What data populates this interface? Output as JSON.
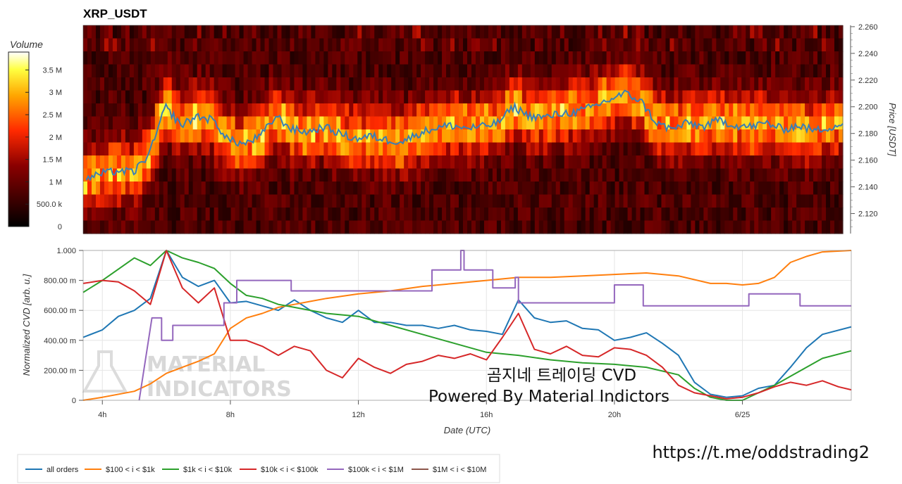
{
  "chart_data": [
    {
      "type": "heatmap",
      "title": "XRP_USDT",
      "y_axis": {
        "label": "Price [USDT]",
        "ticks": [
          "2.260",
          "2.240",
          "2.220",
          "2.200",
          "2.180",
          "2.160",
          "2.140",
          "2.120"
        ],
        "ylim": [
          2.105,
          2.261
        ]
      },
      "colorbar": {
        "label": "Volume",
        "ticks": [
          "3.5 M",
          "3 M",
          "2.5 M",
          "2 M",
          "1.5 M",
          "1 M",
          "500.0 k",
          "0"
        ],
        "max_value": 3.9
      },
      "price_series": {
        "name": "price",
        "color": "#3a7fb5",
        "x": [
          3.5,
          4,
          4.5,
          5,
          5.5,
          6,
          6.5,
          7,
          7.5,
          8,
          8.5,
          9,
          9.5,
          10,
          10.5,
          11,
          11.5,
          12,
          12.5,
          13,
          13.5,
          14,
          14.5,
          15,
          15.5,
          16,
          16.5,
          17,
          17.5,
          18,
          18.5,
          19,
          19.5,
          20,
          20.5,
          21,
          21.5,
          22,
          22.5,
          23,
          23.5,
          24,
          24.5,
          25,
          25.5,
          26,
          26.5,
          27.4
        ],
        "y": [
          2.146,
          2.15,
          2.152,
          2.151,
          2.165,
          2.2,
          2.186,
          2.193,
          2.19,
          2.175,
          2.172,
          2.178,
          2.193,
          2.183,
          2.181,
          2.185,
          2.18,
          2.176,
          2.178,
          2.175,
          2.174,
          2.18,
          2.184,
          2.186,
          2.184,
          2.185,
          2.188,
          2.2,
          2.193,
          2.192,
          2.195,
          2.196,
          2.2,
          2.205,
          2.21,
          2.205,
          2.188,
          2.183,
          2.188,
          2.185,
          2.19,
          2.186,
          2.185,
          2.188,
          2.183,
          2.186,
          2.182,
          2.187
        ]
      }
    },
    {
      "type": "line",
      "xlabel": "Date (UTC)",
      "ylabel": "Normalized CVD [arb. u.]",
      "ylim": [
        0,
        1
      ],
      "yticks": [
        "0",
        "200.00 m",
        "400.00 m",
        "600.00 m",
        "800.00 m",
        "1.000"
      ],
      "xticks": [
        {
          "label": "4h",
          "x": 4
        },
        {
          "label": "8h",
          "x": 8
        },
        {
          "label": "12h",
          "x": 12
        },
        {
          "label": "16h",
          "x": 16
        },
        {
          "label": "20h",
          "x": 20
        },
        {
          "label": "6/25",
          "x": 24
        }
      ],
      "xlim": [
        3.4,
        27.4
      ],
      "series": [
        {
          "name": "all orders",
          "color": "#1f77b4",
          "x": [
            3.4,
            4,
            4.5,
            5,
            5.5,
            6,
            6.5,
            7,
            7.5,
            8,
            8.5,
            9,
            9.5,
            10,
            10.5,
            11,
            11.5,
            12,
            12.5,
            13,
            13.5,
            14,
            14.5,
            15,
            15.5,
            16,
            16.5,
            17,
            17.5,
            18,
            18.5,
            19,
            19.5,
            20,
            20.5,
            21,
            21.5,
            22,
            22.5,
            23,
            23.5,
            24,
            24.5,
            25,
            25.5,
            26,
            26.5,
            27.4
          ],
          "y": [
            0.42,
            0.47,
            0.56,
            0.6,
            0.68,
            1.0,
            0.82,
            0.76,
            0.8,
            0.65,
            0.66,
            0.63,
            0.6,
            0.67,
            0.6,
            0.55,
            0.52,
            0.6,
            0.52,
            0.52,
            0.5,
            0.5,
            0.48,
            0.5,
            0.47,
            0.46,
            0.44,
            0.67,
            0.55,
            0.52,
            0.53,
            0.48,
            0.47,
            0.4,
            0.42,
            0.45,
            0.38,
            0.3,
            0.12,
            0.04,
            0.02,
            0.03,
            0.08,
            0.1,
            0.22,
            0.35,
            0.44,
            0.49
          ]
        },
        {
          "name": "$100 < i < $1k",
          "color": "#ff7f0e",
          "x": [
            3.4,
            4,
            5,
            5.5,
            6,
            6.5,
            7,
            7.5,
            8,
            8.5,
            9,
            9.5,
            10,
            10.5,
            11,
            12,
            13,
            14,
            15,
            16,
            17,
            18,
            19,
            20,
            21,
            22,
            23,
            23.5,
            24,
            24.5,
            25,
            25.5,
            26,
            26.5,
            27.4
          ],
          "y": [
            0.0,
            0.02,
            0.06,
            0.11,
            0.18,
            0.22,
            0.26,
            0.31,
            0.48,
            0.55,
            0.58,
            0.62,
            0.64,
            0.66,
            0.68,
            0.71,
            0.73,
            0.76,
            0.78,
            0.8,
            0.82,
            0.82,
            0.83,
            0.84,
            0.85,
            0.83,
            0.78,
            0.78,
            0.77,
            0.78,
            0.82,
            0.92,
            0.96,
            0.99,
            1.0
          ]
        },
        {
          "name": "$1k < i < $10k",
          "color": "#2ca02c",
          "x": [
            3.4,
            4,
            5,
            5.5,
            6,
            6.5,
            7,
            7.5,
            8,
            8.5,
            9,
            9.5,
            10,
            11,
            12,
            13,
            14,
            15,
            16,
            17,
            18,
            19,
            20,
            21,
            22,
            22.5,
            23,
            23.5,
            24,
            24.5,
            25,
            25.5,
            26,
            26.5,
            27.4
          ],
          "y": [
            0.72,
            0.8,
            0.95,
            0.9,
            1.0,
            0.95,
            0.92,
            0.88,
            0.78,
            0.7,
            0.68,
            0.64,
            0.62,
            0.58,
            0.56,
            0.5,
            0.44,
            0.38,
            0.32,
            0.3,
            0.27,
            0.25,
            0.24,
            0.22,
            0.17,
            0.08,
            0.02,
            0.0,
            0.0,
            0.05,
            0.1,
            0.16,
            0.22,
            0.28,
            0.33
          ]
        },
        {
          "name": "$10k < i < $100k",
          "color": "#d62728",
          "x": [
            3.4,
            4,
            4.5,
            5,
            5.5,
            6,
            6.5,
            7,
            7.5,
            8,
            8.5,
            9,
            9.5,
            10,
            10.5,
            11,
            11.5,
            12,
            12.5,
            13,
            13.5,
            14,
            14.5,
            15,
            15.5,
            16,
            16.5,
            17,
            17.5,
            18,
            18.5,
            19,
            19.5,
            20,
            20.5,
            21,
            21.5,
            22,
            22.5,
            23,
            23.5,
            24,
            24.5,
            25,
            25.5,
            26,
            26.5,
            27,
            27.4
          ],
          "y": [
            0.78,
            0.8,
            0.79,
            0.73,
            0.64,
            1.0,
            0.75,
            0.65,
            0.75,
            0.4,
            0.4,
            0.36,
            0.3,
            0.36,
            0.33,
            0.2,
            0.15,
            0.28,
            0.22,
            0.18,
            0.24,
            0.26,
            0.3,
            0.28,
            0.31,
            0.27,
            0.42,
            0.58,
            0.34,
            0.31,
            0.36,
            0.3,
            0.29,
            0.35,
            0.34,
            0.3,
            0.22,
            0.1,
            0.05,
            0.03,
            0.01,
            0.02,
            0.05,
            0.09,
            0.12,
            0.1,
            0.13,
            0.09,
            0.07
          ]
        },
        {
          "name": "$100k < i < $1M",
          "color": "#9467bd",
          "x": [
            5.15,
            5.55,
            5.55,
            5.85,
            5.85,
            6.2,
            6.2,
            7.8,
            7.8,
            8.2,
            8.2,
            9.9,
            9.9,
            13.5,
            13.5,
            14.3,
            14.3,
            15.2,
            15.2,
            15.3,
            15.3,
            16.2,
            16.2,
            16.9,
            16.9,
            17.0,
            17.0,
            20.0,
            20.0,
            20.9,
            20.9,
            23.5,
            23.5,
            24.2,
            24.2,
            25.8,
            25.8,
            27.4
          ],
          "y": [
            0.0,
            0.55,
            0.55,
            0.55,
            0.4,
            0.4,
            0.5,
            0.5,
            0.65,
            0.65,
            0.8,
            0.8,
            0.73,
            0.73,
            0.73,
            0.73,
            0.87,
            0.87,
            1.0,
            1.0,
            0.87,
            0.87,
            0.75,
            0.75,
            0.82,
            0.82,
            0.65,
            0.65,
            0.77,
            0.77,
            0.63,
            0.63,
            0.63,
            0.63,
            0.71,
            0.71,
            0.63,
            0.63
          ]
        },
        {
          "name": "$1M < i < $10M",
          "color": "#8c564b",
          "x": [],
          "y": []
        }
      ],
      "annotations": {
        "overlay_line1": "곰지네 트레이딩 CVD",
        "overlay_line2": "Powered By Material Indictors",
        "url": "https://t.me/oddstrading2",
        "watermark_line1": "MATERIAL",
        "watermark_line2": "INDICATORS"
      }
    }
  ]
}
